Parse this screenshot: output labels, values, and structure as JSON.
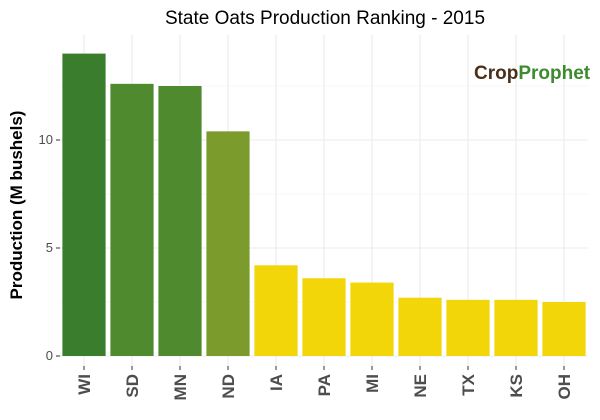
{
  "chart_data": {
    "type": "bar",
    "title": "State Oats Production Ranking - 2015",
    "xlabel": "",
    "ylabel": "Production (M bushels)",
    "ylim": [
      0,
      14.7
    ],
    "yticks": [
      0,
      5,
      10
    ],
    "grid": true,
    "categories": [
      "WI",
      "SD",
      "MN",
      "ND",
      "IA",
      "PA",
      "MI",
      "NE",
      "TX",
      "KS",
      "OH"
    ],
    "values": [
      14.0,
      12.6,
      12.5,
      10.4,
      4.2,
      3.6,
      3.4,
      2.7,
      2.6,
      2.6,
      2.5
    ],
    "colors": [
      "#3a7d2c",
      "#4f8a2e",
      "#4f8a2e",
      "#7b9c2d",
      "#f2d60a",
      "#f2d60a",
      "#f2d60a",
      "#f2d60a",
      "#f2d60a",
      "#f2d60a",
      "#f2d60a"
    ]
  },
  "logo": {
    "part1": "Crop",
    "part2": "Prophet",
    "color1": "#4a2f1a",
    "color2": "#3e8a2e"
  }
}
